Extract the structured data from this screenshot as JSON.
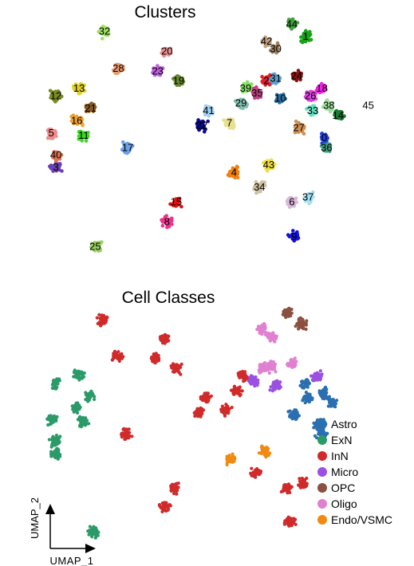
{
  "chart_data": [
    {
      "type": "scatter",
      "subtype": "umap",
      "title": "Clusters",
      "xlabel": "",
      "ylabel": "",
      "grid": false,
      "legend": "none",
      "clusters": [
        {
          "label": "0",
          "x": 7.0,
          "y": 5.0,
          "color": "#1f3fe0"
        },
        {
          "label": "1",
          "x": 6.2,
          "y": 9.1,
          "color": "#1aa01a"
        },
        {
          "label": "2",
          "x": 4.5,
          "y": 7.3,
          "color": "#e0202a"
        },
        {
          "label": "3",
          "x": -4.6,
          "y": 3.8,
          "color": "#6a3fb5"
        },
        {
          "label": "4",
          "x": 3.1,
          "y": 3.6,
          "color": "#f08010"
        },
        {
          "label": "5",
          "x": -4.8,
          "y": 5.2,
          "color": "#f08a8a"
        },
        {
          "label": "6",
          "x": 5.6,
          "y": 2.4,
          "color": "#d8b8d8"
        },
        {
          "label": "7",
          "x": 2.9,
          "y": 5.6,
          "color": "#e8e090"
        },
        {
          "label": "8",
          "x": 0.2,
          "y": 1.6,
          "color": "#f0308a"
        },
        {
          "label": "9",
          "x": 5.7,
          "y": 1.0,
          "color": "#1010e0"
        },
        {
          "label": "10",
          "x": 5.1,
          "y": 6.6,
          "color": "#2a70a0"
        },
        {
          "label": "11",
          "x": -3.4,
          "y": 5.1,
          "color": "#3ad820"
        },
        {
          "label": "12",
          "x": -4.6,
          "y": 6.7,
          "color": "#7a8a20"
        },
        {
          "label": "13",
          "x": -3.6,
          "y": 7.0,
          "color": "#e0d020"
        },
        {
          "label": "14",
          "x": 7.6,
          "y": 5.9,
          "color": "#1a7a30"
        },
        {
          "label": "15",
          "x": 0.6,
          "y": 2.4,
          "color": "#e01010"
        },
        {
          "label": "16",
          "x": -3.7,
          "y": 5.7,
          "color": "#f0a030"
        },
        {
          "label": "17",
          "x": -1.5,
          "y": 4.6,
          "color": "#6aa0e8"
        },
        {
          "label": "18",
          "x": 6.9,
          "y": 7.0,
          "color": "#f020e0"
        },
        {
          "label": "19",
          "x": 0.7,
          "y": 7.3,
          "color": "#6a8a30"
        },
        {
          "label": "20",
          "x": 0.2,
          "y": 8.5,
          "color": "#e89090"
        },
        {
          "label": "21",
          "x": -3.1,
          "y": 6.2,
          "color": "#8a5a20"
        },
        {
          "label": "22",
          "x": 1.7,
          "y": 5.5,
          "color": "#0a0a8a"
        },
        {
          "label": "23",
          "x": -0.2,
          "y": 7.7,
          "color": "#c060e0"
        },
        {
          "label": "24",
          "x": 5.8,
          "y": 7.5,
          "color": "#8a1010"
        },
        {
          "label": "25",
          "x": -2.9,
          "y": 0.6,
          "color": "#9ad060"
        },
        {
          "label": "26",
          "x": 6.4,
          "y": 6.7,
          "color": "#e040e0"
        },
        {
          "label": "27",
          "x": 5.9,
          "y": 5.4,
          "color": "#d09050"
        },
        {
          "label": "28",
          "x": -1.9,
          "y": 7.8,
          "color": "#e89a70"
        },
        {
          "label": "29",
          "x": 3.4,
          "y": 6.4,
          "color": "#80c0b0"
        },
        {
          "label": "30",
          "x": 4.9,
          "y": 8.6,
          "color": "#a08060"
        },
        {
          "label": "31",
          "x": 4.9,
          "y": 7.4,
          "color": "#60a0d0"
        },
        {
          "label": "32",
          "x": -2.5,
          "y": 9.3,
          "color": "#a0e060"
        },
        {
          "label": "33",
          "x": 6.5,
          "y": 6.1,
          "color": "#60e0c0"
        },
        {
          "label": "34",
          "x": 4.2,
          "y": 3.0,
          "color": "#d0c0a0"
        },
        {
          "label": "35",
          "x": 4.1,
          "y": 6.8,
          "color": "#c04080"
        },
        {
          "label": "36",
          "x": 7.1,
          "y": 4.6,
          "color": "#40a080"
        },
        {
          "label": "37",
          "x": 6.3,
          "y": 2.6,
          "color": "#a0e0f0"
        },
        {
          "label": "38",
          "x": 7.2,
          "y": 6.3,
          "color": "#a0e0a0"
        },
        {
          "label": "39",
          "x": 3.6,
          "y": 7.0,
          "color": "#80e060"
        },
        {
          "label": "40",
          "x": -4.6,
          "y": 4.3,
          "color": "#e07050"
        },
        {
          "label": "41",
          "x": 2.0,
          "y": 6.1,
          "color": "#a0d0f0"
        },
        {
          "label": "42",
          "x": 4.5,
          "y": 8.9,
          "color": "#c0a080"
        },
        {
          "label": "43",
          "x": 4.6,
          "y": 3.9,
          "color": "#f0e040"
        },
        {
          "label": "44",
          "x": 5.6,
          "y": 9.6,
          "color": "#40a040"
        },
        {
          "label": "45",
          "x": 8.9,
          "y": 6.3,
          "color": "#808080"
        }
      ]
    },
    {
      "type": "scatter",
      "subtype": "umap",
      "title": "Cell Classes",
      "xlabel": "UMAP_1",
      "ylabel": "UMAP_2",
      "grid": false,
      "legend": "right",
      "classes": [
        {
          "name": "Astro",
          "color": "#2a6fb0"
        },
        {
          "name": "ExN",
          "color": "#2a9a68"
        },
        {
          "name": "InN",
          "color": "#d02a2a"
        },
        {
          "name": "Micro",
          "color": "#9a50e0"
        },
        {
          "name": "OPC",
          "color": "#8a5040"
        },
        {
          "name": "Oligo",
          "color": "#e080d0"
        },
        {
          "name": "Endo/VSMC",
          "color": "#f08a10"
        }
      ],
      "cluster_class": {
        "0": "Astro",
        "14": "Astro",
        "26": "Astro",
        "27": "Astro",
        "33": "Astro",
        "36": "Astro",
        "38": "Astro",
        "3": "ExN",
        "5": "ExN",
        "11": "ExN",
        "12": "ExN",
        "13": "ExN",
        "16": "ExN",
        "21": "ExN",
        "25": "ExN",
        "40": "ExN",
        "4": "Endo/VSMC",
        "43": "Endo/VSMC",
        "1": "OPC",
        "44": "OPC",
        "2": "Oligo",
        "30": "Oligo",
        "42": "Oligo",
        "24": "Oligo",
        "31": "Oligo",
        "10": "Micro",
        "18": "Micro",
        "35": "Micro"
      }
    }
  ]
}
